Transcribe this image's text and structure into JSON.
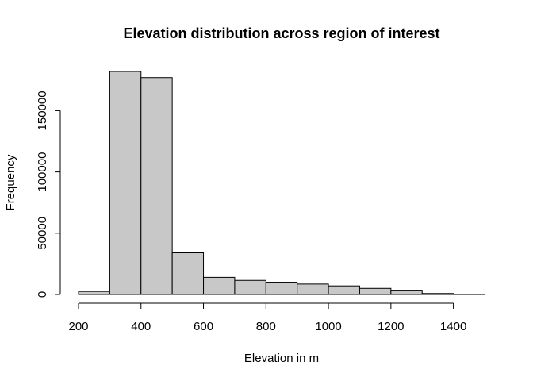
{
  "chart_data": {
    "type": "bar",
    "title": "Elevation distribution across region of interest",
    "xlabel": "Elevation in m",
    "ylabel": "Frequency",
    "bins": [
      {
        "start": 200,
        "end": 300,
        "value": 2500
      },
      {
        "start": 300,
        "end": 400,
        "value": 182000
      },
      {
        "start": 400,
        "end": 500,
        "value": 177000
      },
      {
        "start": 500,
        "end": 600,
        "value": 34000
      },
      {
        "start": 600,
        "end": 700,
        "value": 14000
      },
      {
        "start": 700,
        "end": 800,
        "value": 11500
      },
      {
        "start": 800,
        "end": 900,
        "value": 10000
      },
      {
        "start": 900,
        "end": 1000,
        "value": 8500
      },
      {
        "start": 1000,
        "end": 1100,
        "value": 7000
      },
      {
        "start": 1100,
        "end": 1200,
        "value": 5000
      },
      {
        "start": 1200,
        "end": 1300,
        "value": 3500
      },
      {
        "start": 1300,
        "end": 1400,
        "value": 800
      },
      {
        "start": 1400,
        "end": 1500,
        "value": 300
      }
    ],
    "x_ticks": [
      200,
      400,
      600,
      800,
      1000,
      1200,
      1400
    ],
    "y_ticks": [
      0,
      50000,
      100000,
      150000
    ],
    "xlim": [
      200,
      1500
    ],
    "ylim": [
      0,
      182000
    ],
    "grid": false,
    "legend": "none",
    "bar_color": "#c8c8c8"
  }
}
